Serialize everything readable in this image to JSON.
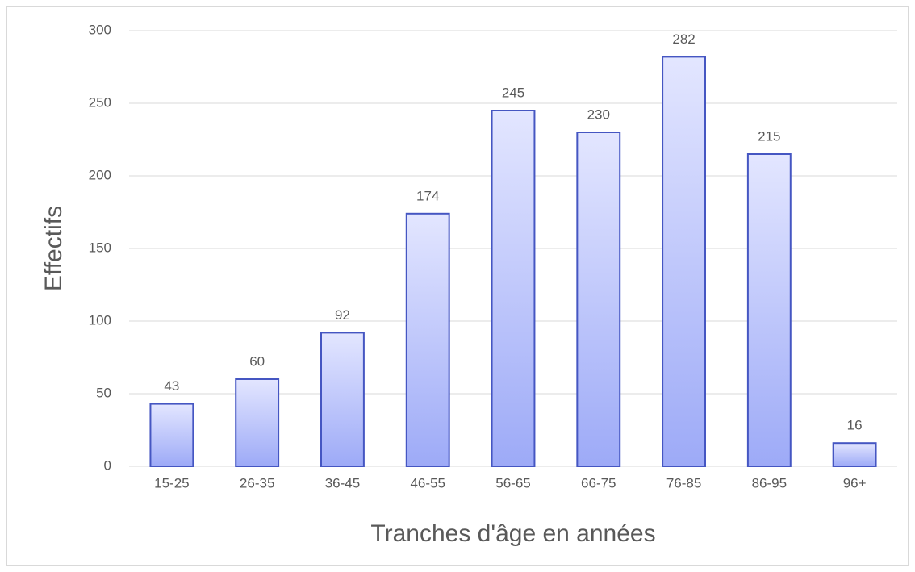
{
  "chart_data": {
    "type": "bar",
    "x_label": "Tranches d'âge en années",
    "y_label": "Effectifs",
    "categories": [
      "15-25",
      "26-35",
      "36-45",
      "46-55",
      "56-65",
      "66-75",
      "76-85",
      "86-95",
      "96+"
    ],
    "values": [
      43,
      60,
      92,
      174,
      245,
      230,
      282,
      215,
      16
    ],
    "color": "#4556c2",
    "ylim": [
      0,
      300
    ],
    "yticks": [
      0,
      50,
      100,
      150,
      200,
      250,
      300
    ],
    "grid": true
  }
}
